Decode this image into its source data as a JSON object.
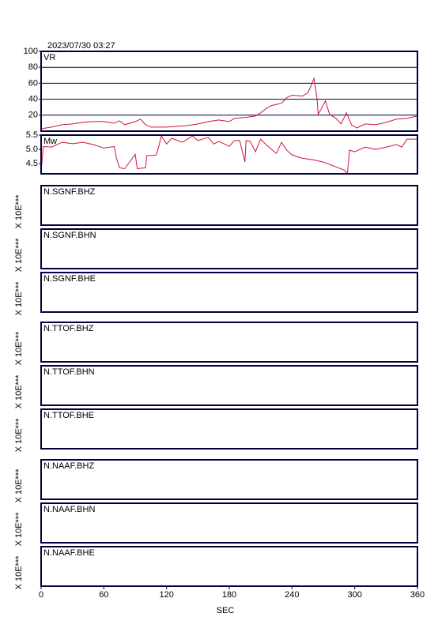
{
  "title": "2023/07/30 03:27",
  "x_axis": {
    "label": "SEC",
    "xlim": [
      0,
      360
    ],
    "xticks": [
      0,
      60,
      120,
      180,
      240,
      300,
      360
    ]
  },
  "chart_data": [
    {
      "type": "line",
      "label": "VR",
      "color": "#d0104c",
      "grid": true,
      "ylim": [
        0,
        100
      ],
      "yticks": [
        20,
        40,
        60,
        80,
        100
      ],
      "x": [
        0,
        10,
        20,
        30,
        40,
        50,
        60,
        70,
        75,
        80,
        90,
        95,
        100,
        105,
        120,
        140,
        150,
        160,
        170,
        180,
        185,
        195,
        205,
        210,
        215,
        220,
        230,
        235,
        240,
        250,
        255,
        258,
        261,
        264,
        265,
        268,
        272,
        276,
        282,
        287,
        292,
        297,
        302,
        310,
        320,
        330,
        340,
        350,
        360
      ],
      "values": [
        3,
        5,
        8,
        9,
        11,
        12,
        12,
        10,
        13,
        8,
        12,
        15,
        8,
        5,
        5,
        7,
        9,
        12,
        14,
        12,
        16,
        17,
        19,
        23,
        28,
        32,
        35,
        42,
        45,
        44,
        48,
        56,
        66,
        40,
        21,
        28,
        38,
        21,
        16,
        9,
        23,
        8,
        4,
        9,
        8,
        11,
        15,
        16,
        19
      ]
    },
    {
      "type": "line",
      "label": "Mw",
      "color": "#d0104c",
      "grid": false,
      "ylim": [
        4.15,
        5.5
      ],
      "yticks": [
        {
          "value": 5.5,
          "label": "5.5"
        },
        {
          "value": 5,
          "label": "5.0"
        },
        4.5
      ],
      "x": [
        0,
        2,
        10,
        20,
        30,
        40,
        50,
        60,
        70,
        72,
        75,
        80,
        90,
        92,
        100,
        101,
        110,
        112,
        115,
        120,
        125,
        135,
        145,
        150,
        160,
        165,
        170,
        180,
        185,
        190,
        195,
        196,
        200,
        205,
        210,
        215,
        225,
        230,
        235,
        240,
        250,
        260,
        270,
        280,
        290,
        293,
        295,
        300,
        310,
        320,
        330,
        340,
        345,
        350,
        355,
        360
      ],
      "values": [
        4.2,
        5.1,
        5.08,
        5.25,
        5.2,
        5.25,
        5.17,
        5.05,
        5.1,
        4.7,
        4.36,
        4.33,
        4.83,
        4.33,
        4.36,
        4.78,
        4.8,
        5.03,
        5.47,
        5.19,
        5.39,
        5.25,
        5.47,
        5.31,
        5.42,
        5.19,
        5.28,
        5.11,
        5.31,
        5.31,
        4.56,
        5.31,
        5.28,
        4.92,
        5.36,
        5.17,
        4.86,
        5.25,
        4.97,
        4.81,
        4.69,
        4.64,
        4.56,
        4.42,
        4.28,
        4.15,
        4.97,
        4.92,
        5.08,
        5.0,
        5.08,
        5.17,
        5.08,
        5.36,
        5.36,
        5.36
      ]
    }
  ],
  "waveforms": {
    "amplitude_label": "X 10E***",
    "groups": [
      [
        "N.SGNF.BHZ",
        "N.SGNF.BHN",
        "N.SGNF.BHE"
      ],
      [
        "N.TTOF.BHZ",
        "N.TTOF.BHN",
        "N.TTOF.BHE"
      ],
      [
        "N.NAAF.BHZ",
        "N.NAAF.BHN",
        "N.NAAF.BHE"
      ]
    ]
  }
}
